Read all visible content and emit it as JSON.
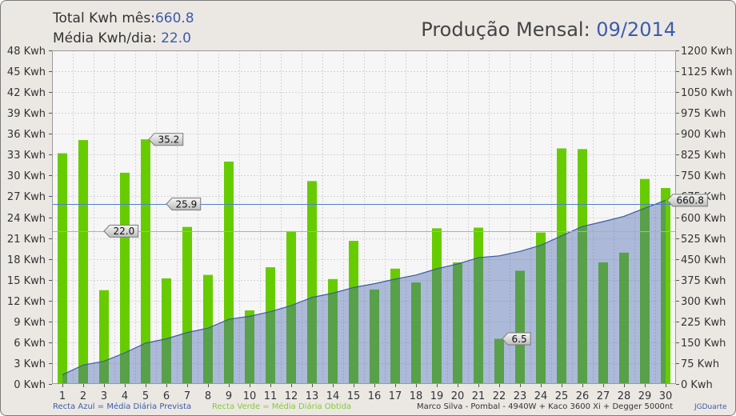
{
  "header": {
    "total_label": "Total Kwh mês:",
    "total_value": "660.8",
    "avg_label": "Média Kwh/dia: ",
    "avg_value": "22.0",
    "title_label": "Produção Mensal: ",
    "title_value": "09/2014"
  },
  "colors": {
    "text": "#333333",
    "value_blue": "#3b5ca8",
    "plot_background": "#f6f6f6"
  },
  "chart_data": {
    "type": "bar",
    "categories": [
      1,
      2,
      3,
      4,
      5,
      6,
      7,
      8,
      9,
      10,
      11,
      12,
      13,
      14,
      15,
      16,
      17,
      18,
      19,
      20,
      21,
      22,
      23,
      24,
      25,
      26,
      27,
      28,
      29,
      30
    ],
    "series": [
      {
        "type": "bar",
        "axis": "left",
        "color": "#66cc00",
        "values": [
          33.2,
          35.1,
          13.5,
          30.4,
          35.2,
          15.2,
          22.6,
          15.7,
          32.0,
          10.6,
          16.8,
          22.0,
          29.2,
          15.1,
          20.6,
          13.6,
          16.6,
          14.6,
          22.4,
          17.5,
          22.5,
          6.5,
          16.3,
          21.8,
          33.9,
          33.8,
          17.5,
          18.9,
          29.5,
          28.2
        ]
      },
      {
        "type": "area",
        "axis": "right",
        "color": "#4664af",
        "line_color": "#3a5aa0",
        "values": [
          33.2,
          68.3,
          81.8,
          112.2,
          147.4,
          162.6,
          185.2,
          200.9,
          232.9,
          243.5,
          260.3,
          282.3,
          311.5,
          326.6,
          347.2,
          360.8,
          377.4,
          392.0,
          414.4,
          431.9,
          454.4,
          460.9,
          477.2,
          499.0,
          532.9,
          566.7,
          584.2,
          603.1,
          632.6,
          660.8
        ]
      }
    ],
    "y_left": {
      "min": 0,
      "max": 48,
      "step": 3,
      "unit": "Kwh"
    },
    "y_right": {
      "min": 0,
      "max": 1200,
      "step": 75,
      "unit": "Kwh"
    },
    "reference_lines": [
      {
        "value": 25.9,
        "color": "#4f7fc8",
        "label": "25.9"
      },
      {
        "value": 22.0,
        "color": "#8fd14f",
        "label": "22.0"
      }
    ],
    "point_labels": [
      {
        "x": 5,
        "series": 0,
        "label": "35.2"
      },
      {
        "x": 22,
        "series": 0,
        "label": "6.5"
      },
      {
        "x": 30,
        "series": 1,
        "label": "660.8"
      }
    ],
    "grid": true
  },
  "footer": {
    "legend_blue": "Recta Azul = Média Diária Prevista",
    "legend_green": "Recta Verde = Média Diária Obtida",
    "system": "Marco Silva - Pombal - 4940W + Kaco 3600 Xi + Degger 5000nt",
    "author": "JGDuarte"
  }
}
